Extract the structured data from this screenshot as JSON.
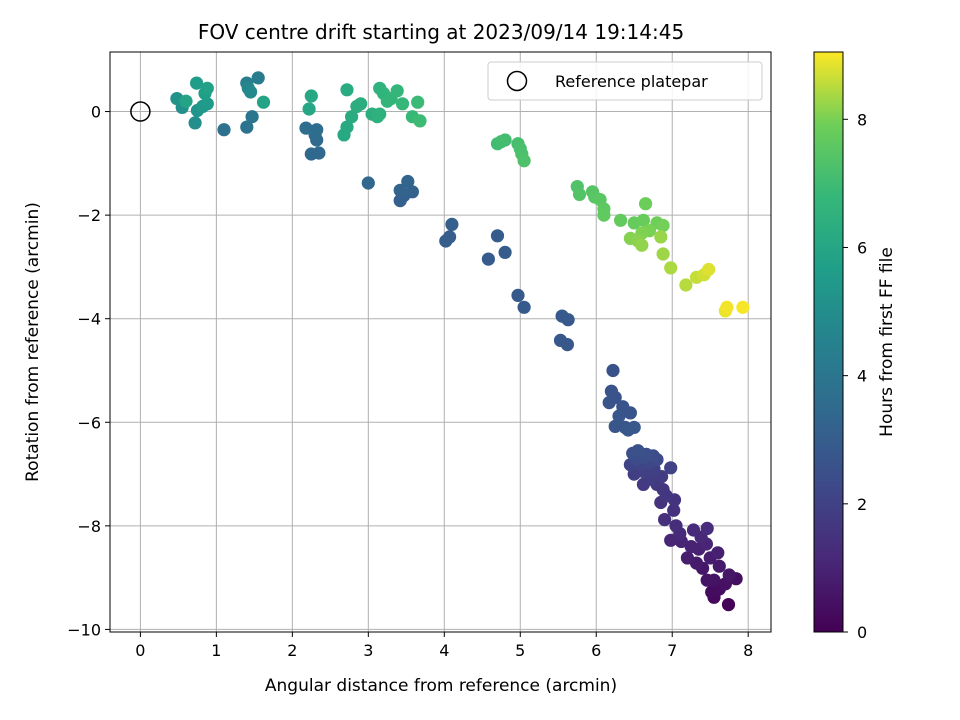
{
  "chart_data": {
    "type": "scatter",
    "title": "FOV centre drift starting at 2023/09/14 19:14:45",
    "xlabel": "Angular distance from reference (arcmin)",
    "ylabel": "Rotation from reference (arcmin)",
    "xlim": [
      -0.4,
      8.3
    ],
    "ylim": [
      -10.05,
      1.15
    ],
    "x_ticks": [
      0,
      1,
      2,
      3,
      4,
      5,
      6,
      7,
      8
    ],
    "y_ticks": [
      -10,
      -8,
      -6,
      -4,
      -2,
      0
    ],
    "grid": true,
    "legend": {
      "position": "top-right",
      "entries": [
        "Reference platepar"
      ]
    },
    "colorbar": {
      "label": "Hours from first FF file",
      "range": [
        0,
        9.05
      ],
      "ticks": [
        0,
        2,
        4,
        6,
        8
      ],
      "colormap": "viridis"
    },
    "reference_point": {
      "x": 0,
      "y": 0,
      "label": "Reference platepar"
    },
    "series": [
      {
        "points": [
          [
            7.74,
            -9.52,
            0.1
          ],
          [
            7.55,
            -9.38,
            0.2
          ],
          [
            7.52,
            -9.28,
            0.3
          ],
          [
            7.62,
            -9.22,
            0.35
          ],
          [
            7.84,
            -9.02,
            0.4
          ],
          [
            7.7,
            -9.12,
            0.45
          ],
          [
            7.55,
            -9.05,
            0.5
          ],
          [
            7.46,
            -9.05,
            0.55
          ],
          [
            7.75,
            -8.95,
            0.6
          ],
          [
            7.4,
            -8.82,
            0.65
          ],
          [
            7.62,
            -8.78,
            0.7
          ],
          [
            7.32,
            -8.72,
            0.75
          ],
          [
            7.2,
            -8.62,
            0.8
          ],
          [
            7.5,
            -8.62,
            0.85
          ],
          [
            7.6,
            -8.52,
            0.9
          ],
          [
            7.35,
            -8.45,
            0.95
          ],
          [
            7.25,
            -8.4,
            1.0
          ],
          [
            7.45,
            -8.35,
            1.05
          ],
          [
            7.12,
            -8.3,
            1.08
          ],
          [
            6.98,
            -8.28,
            1.1
          ],
          [
            7.38,
            -8.22,
            1.15
          ],
          [
            7.1,
            -8.15,
            1.2
          ],
          [
            7.28,
            -8.08,
            1.25
          ],
          [
            7.46,
            -8.05,
            1.3
          ],
          [
            7.05,
            -8.0,
            1.35
          ],
          [
            6.9,
            -7.88,
            1.4
          ],
          [
            7.02,
            -7.7,
            1.45
          ],
          [
            6.85,
            -7.55,
            1.5
          ],
          [
            7.03,
            -7.5,
            1.55
          ],
          [
            6.92,
            -7.42,
            1.6
          ],
          [
            6.88,
            -7.3,
            1.65
          ],
          [
            6.8,
            -7.2,
            1.7
          ],
          [
            6.62,
            -7.2,
            1.75
          ],
          [
            6.72,
            -7.1,
            1.8
          ],
          [
            6.86,
            -7.05,
            1.85
          ],
          [
            6.5,
            -7.0,
            1.9
          ],
          [
            6.62,
            -6.95,
            1.95
          ],
          [
            6.76,
            -6.9,
            2.0
          ],
          [
            6.98,
            -6.88,
            2.05
          ],
          [
            6.45,
            -6.82,
            2.1
          ],
          [
            6.58,
            -6.8,
            2.15
          ],
          [
            6.7,
            -6.78,
            2.2
          ],
          [
            6.8,
            -6.72,
            2.25
          ],
          [
            6.52,
            -6.72,
            2.3
          ],
          [
            6.64,
            -6.68,
            2.35
          ],
          [
            6.75,
            -6.65,
            2.4
          ],
          [
            6.6,
            -6.65,
            2.45
          ],
          [
            6.48,
            -6.6,
            2.5
          ],
          [
            6.66,
            -6.62,
            2.52
          ],
          [
            6.55,
            -6.55,
            2.55
          ],
          [
            6.22,
            -5.0,
            2.58
          ],
          [
            6.2,
            -5.4,
            2.6
          ],
          [
            6.25,
            -5.52,
            2.62
          ],
          [
            6.17,
            -5.62,
            2.64
          ],
          [
            6.35,
            -5.7,
            2.66
          ],
          [
            6.45,
            -5.82,
            2.68
          ],
          [
            6.3,
            -5.88,
            2.7
          ],
          [
            6.25,
            -6.08,
            2.72
          ],
          [
            6.38,
            -6.1,
            2.74
          ],
          [
            6.5,
            -6.1,
            2.76
          ],
          [
            6.42,
            -6.15,
            2.78
          ],
          [
            5.62,
            -4.5,
            2.8
          ],
          [
            5.53,
            -4.42,
            2.82
          ],
          [
            5.55,
            -3.95,
            2.84
          ],
          [
            5.63,
            -4.02,
            2.86
          ],
          [
            5.05,
            -3.78,
            2.88
          ],
          [
            4.97,
            -3.55,
            2.9
          ],
          [
            4.58,
            -2.85,
            2.92
          ],
          [
            4.8,
            -2.72,
            2.94
          ],
          [
            4.7,
            -2.4,
            2.96
          ],
          [
            4.02,
            -2.5,
            2.98
          ],
          [
            4.07,
            -2.42,
            3.0
          ],
          [
            4.1,
            -2.18,
            3.05
          ],
          [
            3.42,
            -1.72,
            3.1
          ],
          [
            3.47,
            -1.62,
            3.15
          ],
          [
            3.58,
            -1.55,
            3.2
          ],
          [
            3.42,
            -1.52,
            3.25
          ],
          [
            3.52,
            -1.35,
            3.3
          ],
          [
            3.0,
            -1.38,
            3.35
          ],
          [
            2.35,
            -0.8,
            3.4
          ],
          [
            2.25,
            -0.82,
            3.45
          ],
          [
            2.32,
            -0.55,
            3.5
          ],
          [
            2.3,
            -0.45,
            3.55
          ],
          [
            2.32,
            -0.35,
            3.6
          ],
          [
            2.18,
            -0.32,
            3.65
          ],
          [
            1.1,
            -0.35,
            3.8
          ],
          [
            1.4,
            -0.3,
            3.9
          ],
          [
            1.47,
            -0.1,
            4.0
          ],
          [
            1.55,
            0.65,
            4.2
          ],
          [
            1.4,
            0.55,
            4.4
          ],
          [
            1.42,
            0.45,
            4.6
          ],
          [
            1.45,
            0.38,
            4.8
          ],
          [
            0.72,
            -0.22,
            5.0
          ],
          [
            0.55,
            0.08,
            5.1
          ],
          [
            0.48,
            0.25,
            5.2
          ],
          [
            0.75,
            0.02,
            5.3
          ],
          [
            0.82,
            0.1,
            5.4
          ],
          [
            0.88,
            0.15,
            5.5
          ],
          [
            0.74,
            0.55,
            5.6
          ],
          [
            0.85,
            0.35,
            5.7
          ],
          [
            0.88,
            0.45,
            5.8
          ],
          [
            0.6,
            0.2,
            5.9
          ],
          [
            1.62,
            0.18,
            5.95
          ],
          [
            2.22,
            0.05,
            6.0
          ],
          [
            2.25,
            0.3,
            6.05
          ],
          [
            2.68,
            -0.45,
            6.1
          ],
          [
            2.72,
            -0.3,
            6.15
          ],
          [
            2.78,
            -0.1,
            6.2
          ],
          [
            2.72,
            0.42,
            6.25
          ],
          [
            2.85,
            0.1,
            6.3
          ],
          [
            2.9,
            0.15,
            6.35
          ],
          [
            3.05,
            -0.05,
            6.4
          ],
          [
            3.12,
            -0.1,
            6.45
          ],
          [
            3.15,
            -0.05,
            6.5
          ],
          [
            3.15,
            0.45,
            6.55
          ],
          [
            3.2,
            0.35,
            6.6
          ],
          [
            3.25,
            0.2,
            6.65
          ],
          [
            3.3,
            0.25,
            6.7
          ],
          [
            3.38,
            0.4,
            6.75
          ],
          [
            3.45,
            0.15,
            6.8
          ],
          [
            3.58,
            -0.1,
            6.85
          ],
          [
            3.65,
            0.18,
            6.9
          ],
          [
            3.68,
            -0.18,
            6.95
          ],
          [
            4.7,
            -0.62,
            7.0
          ],
          [
            4.75,
            -0.58,
            7.05
          ],
          [
            4.8,
            -0.55,
            7.1
          ],
          [
            4.97,
            -0.62,
            7.15
          ],
          [
            5.0,
            -0.72,
            7.2
          ],
          [
            5.02,
            -0.82,
            7.25
          ],
          [
            5.05,
            -0.95,
            7.3
          ],
          [
            5.75,
            -1.45,
            7.35
          ],
          [
            5.78,
            -1.6,
            7.4
          ],
          [
            5.95,
            -1.55,
            7.45
          ],
          [
            5.98,
            -1.65,
            7.5
          ],
          [
            6.05,
            -1.7,
            7.55
          ],
          [
            6.1,
            -1.88,
            7.6
          ],
          [
            6.1,
            -2.0,
            7.65
          ],
          [
            6.32,
            -2.1,
            7.7
          ],
          [
            6.5,
            -2.15,
            7.75
          ],
          [
            6.62,
            -2.1,
            7.8
          ],
          [
            6.65,
            -1.78,
            7.85
          ],
          [
            6.8,
            -2.15,
            7.9
          ],
          [
            6.88,
            -2.2,
            7.95
          ],
          [
            6.7,
            -2.3,
            8.0
          ],
          [
            6.6,
            -2.35,
            8.05
          ],
          [
            6.45,
            -2.45,
            8.1
          ],
          [
            6.55,
            -2.5,
            8.15
          ],
          [
            6.6,
            -2.58,
            8.2
          ],
          [
            6.85,
            -2.42,
            8.25
          ],
          [
            6.88,
            -2.75,
            8.3
          ],
          [
            6.98,
            -3.02,
            8.4
          ],
          [
            7.18,
            -3.35,
            8.5
          ],
          [
            7.32,
            -3.2,
            8.6
          ],
          [
            7.42,
            -3.15,
            8.7
          ],
          [
            7.48,
            -3.05,
            8.8
          ],
          [
            7.7,
            -3.85,
            8.9
          ],
          [
            7.72,
            -3.78,
            8.95
          ],
          [
            7.93,
            -3.78,
            9.0
          ]
        ]
      }
    ]
  }
}
